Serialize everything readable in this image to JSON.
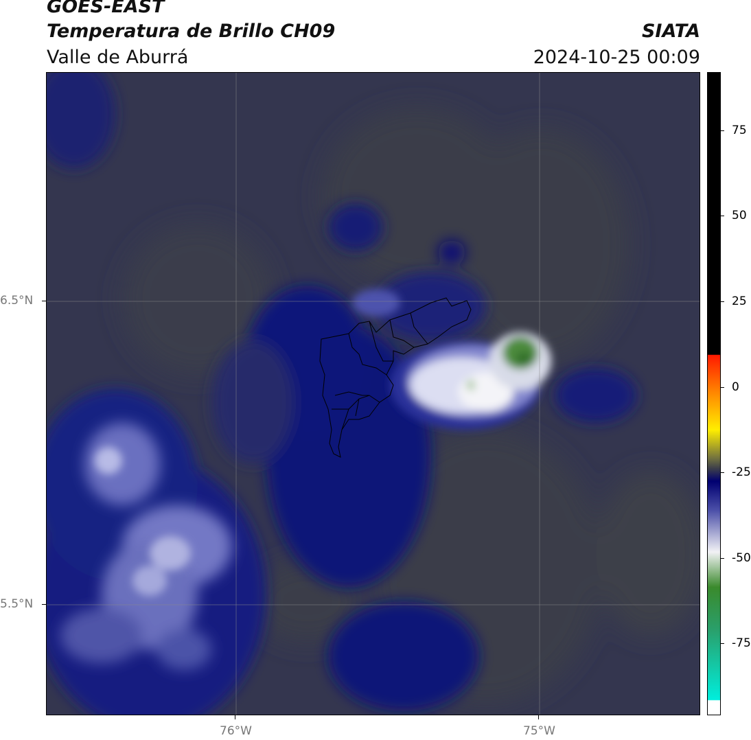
{
  "header": {
    "satellite": "GOES-EAST",
    "product": "Temperatura de Brillo CH09",
    "region": "Valle de Aburrá",
    "organization": "SIATA",
    "datetime": "2024-10-25 00:09"
  },
  "map": {
    "x_ticks": [
      {
        "label": "76°W",
        "value": -76
      },
      {
        "label": "75°W",
        "value": -75
      }
    ],
    "y_ticks": [
      {
        "label": "6.5°N",
        "value": 6.5
      },
      {
        "label": "5.5°N",
        "value": 5.5
      }
    ],
    "lon_range": [
      -76.623,
      -74.467
    ],
    "lat_range": [
      5.137,
      7.255
    ],
    "base_color": "#33354f"
  },
  "colorbar": {
    "range": [
      -96,
      92
    ],
    "ticks": [
      {
        "label": "75",
        "value": 75
      },
      {
        "label": "50",
        "value": 50
      },
      {
        "label": "25",
        "value": 25
      },
      {
        "label": "0",
        "value": 0
      },
      {
        "label": "-25",
        "value": -25
      },
      {
        "label": "-50",
        "value": -50
      },
      {
        "label": "-75",
        "value": -75
      }
    ]
  }
}
